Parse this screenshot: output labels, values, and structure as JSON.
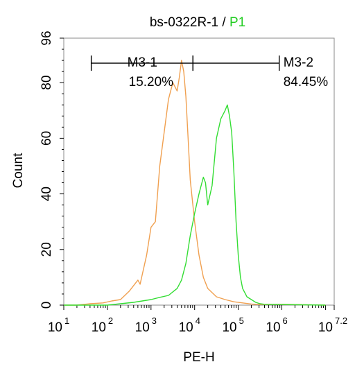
{
  "chart_data": {
    "type": "histogram",
    "title_parts": [
      {
        "text": "bs-0322R-1 / ",
        "color": "#000000"
      },
      {
        "text": "P1",
        "color": "#22cc22"
      }
    ],
    "xlabel": "PE-H",
    "ylabel": "Count",
    "x_scale": "log",
    "xlim_log10": [
      1,
      7.2
    ],
    "ylim": [
      0,
      96
    ],
    "x_ticks": [
      {
        "value": 1,
        "base": "10",
        "exp": "1"
      },
      {
        "value": 2,
        "base": "10",
        "exp": "2"
      },
      {
        "value": 3,
        "base": "10",
        "exp": "3"
      },
      {
        "value": 4,
        "base": "10",
        "exp": "4"
      },
      {
        "value": 5,
        "base": "10",
        "exp": "5"
      },
      {
        "value": 6,
        "base": "10",
        "exp": "6"
      },
      {
        "value": 7.2,
        "base": "10",
        "exp": "7.2"
      }
    ],
    "y_ticks": [
      {
        "value": 0,
        "label": "0"
      },
      {
        "value": 20,
        "label": "20"
      },
      {
        "value": 40,
        "label": "40"
      },
      {
        "value": 60,
        "label": "60"
      },
      {
        "value": 80,
        "label": "80"
      },
      {
        "value": 96,
        "label": "96"
      }
    ],
    "gates": [
      {
        "name": "M3-1",
        "percent": "15.20%",
        "range_log10": [
          1.63,
          3.96
        ],
        "y": 87
      },
      {
        "name": "M3-2",
        "percent": "84.45%",
        "range_log10": [
          3.96,
          5.94
        ],
        "y": 87
      }
    ],
    "series": [
      {
        "color": "#f0a050",
        "x_log10": [
          1.0,
          1.3,
          1.6,
          1.9,
          2.1,
          2.3,
          2.5,
          2.6,
          2.7,
          2.75,
          2.8,
          2.9,
          3.0,
          3.1,
          3.2,
          3.3,
          3.4,
          3.5,
          3.6,
          3.65,
          3.7,
          3.75,
          3.8,
          3.85,
          3.9,
          4.0,
          4.1,
          4.2,
          4.3,
          4.5,
          4.7,
          4.9,
          5.1,
          5.3,
          5.5,
          6.0,
          7.0
        ],
        "y": [
          0,
          0,
          0.5,
          0.8,
          1.5,
          2,
          5,
          7,
          9,
          7.5,
          11,
          18,
          28,
          30,
          50,
          62,
          74,
          80,
          77,
          82,
          88,
          84,
          75,
          60,
          45,
          30,
          18,
          10,
          6,
          3,
          2,
          1.2,
          0.8,
          0.4,
          0.2,
          0.3,
          0
        ]
      },
      {
        "color": "#33dd33",
        "x_log10": [
          1.0,
          2.0,
          2.6,
          2.8,
          3.0,
          3.2,
          3.4,
          3.6,
          3.7,
          3.8,
          3.9,
          4.0,
          4.1,
          4.2,
          4.25,
          4.3,
          4.4,
          4.5,
          4.6,
          4.7,
          4.75,
          4.8,
          4.85,
          4.9,
          4.95,
          5.0,
          5.05,
          5.1,
          5.2,
          5.3,
          5.4,
          5.5,
          5.6,
          6.0,
          7.0
        ],
        "y": [
          0,
          0,
          1,
          1.5,
          2,
          2.8,
          3.5,
          6,
          9,
          15,
          25,
          33,
          40,
          46,
          44,
          36,
          43,
          60,
          67,
          70,
          72,
          68,
          62,
          48,
          30,
          18,
          10,
          6,
          3,
          2,
          1,
          0.5,
          0.3,
          0.2,
          0
        ]
      }
    ]
  }
}
